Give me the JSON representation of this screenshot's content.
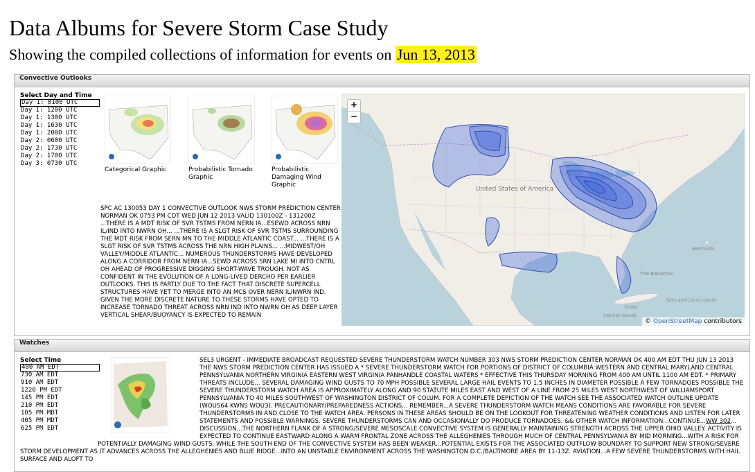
{
  "header": {
    "title": "Data Albums for Severe Storm Case Study",
    "subtitle": "Showing the compiled collections of information for events on",
    "date": "Jun 13, 2013"
  },
  "outlooks": {
    "heading": "Convective Outlooks",
    "select_label": "Select Day and Time",
    "options": [
      "Day 1: 0100 UTC",
      "Day 1: 1200 UTC",
      "Day 1: 1300 UTC",
      "Day 1: 1630 UTC",
      "Day 1: 2000 UTC",
      "Day 2: 0600 UTC",
      "Day 2: 1730 UTC",
      "Day 2: 1700 UTC",
      "Day 3: 0730 UTC"
    ],
    "thumbnails": [
      "Categorical Graphic",
      "Probabilistic Tornado Graphic",
      "Probabilistic Damaging Wind Graphic"
    ],
    "text": "SPC AC 130053 DAY 1 CONVECTIVE OUTLOOK NWS STORM PREDICTION CENTER NORMAN OK 0753 PM CDT WED JUN 12 2013 VALID 130100Z - 131200Z ...THERE IS A MDT RISK OF SVR TSTMS FROM NERN IA...ESEWD ACROSS NRN IL/IND INTO NWRN OH... ...THERE IS A SLGT RISK OF SVR TSTMS SURROUNDING THE MDT RISK FROM SERN MN TO THE MIDDLE ATLANTIC COAST... ...THERE IS A SLGT RISK OF SVR TSTMS ACROSS THE NRN HIGH PLAINS... ...MIDWEST/OH VALLEY/MIDDLE ATLANTIC... NUMEROUS THUNDERSTORMS HAVE DEVELOPED ALONG A CORRIDOR FROM NERN IA...SEWD ACROSS SRN LAKE MI INTO CNTRL OH AHEAD OF PROGRESSIVE DIGGING SHORT-WAVE TROUGH. NOT AS CONFIDENT IN THE EVOLUTION OF A LONG-LIVED DERCHO PER EARLIER OUTLOOKS. THIS IS PARTLY DUE TO THE FACT THAT DISCRETE SUPERCELL STRUCTURES HAVE YET TO MERGE INTO AN MCS OVER NERN IL/NWRN IND. GIVEN THE MORE DISCRETE NATURE TO THESE STORMS HAVE OPTED TO INCREASE TORNADO THREAT ACROSS NRN IND INTO NWRN OH AS DEEP LAYER VERTICAL SHEAR/BUOYANCY IS EXPECTED TO REMAIN",
    "map": {
      "zoom_in": "+",
      "zoom_out": "−",
      "attribution_prefix": "©",
      "attribution_link": "OpenStreetMap",
      "attribution_suffix": "contributors",
      "labels": [
        "United States of America",
        "Cuba",
        "Bermuda",
        "The Bahamas",
        "Turks and Caicos Islands",
        "Cayman Islands"
      ]
    }
  },
  "watches": {
    "heading": "Watches",
    "select_label": "Select Time",
    "options": [
      "400 AM EDT",
      "730 AM EDT",
      "910 AM EDT",
      "1220 PM EDT",
      "145 PM EDT",
      "210 PM EDT",
      "105 PM MDT",
      "405 PM MDT",
      "625 PM EDT"
    ],
    "text_before": "SEL3 URGENT - IMMEDIATE BROADCAST REQUESTED SEVERE THUNDERSTORM WATCH NUMBER 303 NWS STORM PREDICTION CENTER NORMAN OK 400 AM EDT THU JUN 13 2013 THE NWS STORM PREDICTION CENTER HAS ISSUED A * SEVERE THUNDERSTORM WATCH FOR PORTIONS OF DISTRICT OF COLUMBIA WESTERN AND CENTRAL MARYLAND CENTRAL PENNSYLVANIA NORTHERN VIRGINIA EASTERN WEST VIRGINIA PANHANDLE COASTAL WATERS * EFFECTIVE THIS THURSDAY MORNING FROM 400 AM UNTIL 1100 AM EDT. * PRIMARY THREATS INCLUDE... SEVERAL DAMAGING WIND GUSTS TO 70 MPH POSSIBLE SEVERAL LARGE HAIL EVENTS TO 1.5 INCHES IN DIAMETER POSSIBLE A FEW TORNADOES POSSIBLE THE SEVERE THUNDERSTORM WATCH AREA IS APPROXIMATELY ALONG AND 90 STATUTE MILES EAST AND WEST OF A LINE FROM 25 MILES WEST NORTHWEST OF WILLIAMSPORT PENNSYLVANIA TO 40 MILES SOUTHWEST OF WASHINGTON DISTRICT OF COLUM. FOR A COMPLETE DEPICTION OF THE WATCH SEE THE ASSOCIATED WATCH OUTLINE UPDATE (WOUS64 KWNS WOU3). PRECAUTIONARY/PREPAREDNESS ACTIONS... REMEMBER...A SEVERE THUNDERSTORM WATCH MEANS CONDITIONS ARE FAVORABLE FOR SEVERE THUNDERSTORMS IN AND CLOSE TO THE WATCH AREA. PERSONS IN THESE AREAS SHOULD BE ON THE LOOKOUT FOR THREATENING WEATHER CONDITIONS AND LISTEN FOR LATER STATEMENTS AND POSSIBLE WARNINGS. SEVERE THUNDERSTORMS CAN AND OCCASIONALLY DO PRODUCE TORNADOES. && OTHER WATCH INFORMATION...CONTINUE...",
    "text_link": "WW 302",
    "text_after": "... DISCUSSION...THE NORTHERN FLANK OF A STRONG/SEVERE MESOSCALE CONVECTIVE SYSTEM IS GENERALLY MAINTAINING STRENGTH ACROSS THE UPPER OHIO VALLEY. ACTIVITY IS EXPECTED TO CONTINUE EASTWARD ALONG A WARM FRONTAL ZONE ACROSS THE ALLEGHENIES THROUGH MUCH OF CENTRAL PENNSYLVANIA BY MID MORNING...WITH A RISK FOR POTENTIALLY DAMAGING WIND GUSTS. WHILE THE SOUTH END OF THE CONVECTIVE SYSTEM HAS BEEN WEAKER...POTENTIAL EXISTS FOR THE ASSOCIATED OUTFLOW BOUNDARY TO SUPPORT NEW STRONG/SEVERE STORM DEVELOPMENT AS IT ADVANCES ACROSS THE ALLEGHENIES AND BLUE RIDGE...INTO AN UNSTABLE ENVIRONMENT ACROSS THE WASHINGTON D.C./BALTIMORE AREA BY 11-13Z. AVIATION...A FEW SEVERE THUNDERSTORMS WITH HAIL SURFACE AND ALOFT TO"
  }
}
